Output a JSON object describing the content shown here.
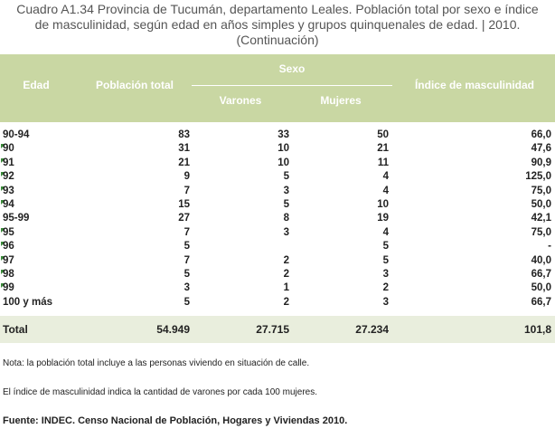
{
  "title_lines": [
    "Cuadro A1.34 Provincia de Tucumán, departamento Leales. Población total por sexo e índice",
    "de masculinidad, según edad en años simples y grupos quinquenales de edad. | 2010.",
    "(Continuación)"
  ],
  "header": {
    "edad": "Edad",
    "poblacion": "Población total",
    "sexo": "Sexo",
    "varones": "Varones",
    "mujeres": "Mujeres",
    "indice": "Índice de masculinidad"
  },
  "rows": [
    {
      "edad": "90-94",
      "pob": "83",
      "var": "33",
      "muj": "50",
      "ind": "66,0",
      "marker": false
    },
    {
      "edad": "90",
      "pob": "31",
      "var": "10",
      "muj": "21",
      "ind": "47,6",
      "marker": true
    },
    {
      "edad": "91",
      "pob": "21",
      "var": "10",
      "muj": "11",
      "ind": "90,9",
      "marker": true
    },
    {
      "edad": "92",
      "pob": "9",
      "var": "5",
      "muj": "4",
      "ind": "125,0",
      "marker": true
    },
    {
      "edad": "93",
      "pob": "7",
      "var": "3",
      "muj": "4",
      "ind": "75,0",
      "marker": true
    },
    {
      "edad": "94",
      "pob": "15",
      "var": "5",
      "muj": "10",
      "ind": "50,0",
      "marker": true
    },
    {
      "edad": "95-99",
      "pob": "27",
      "var": "8",
      "muj": "19",
      "ind": "42,1",
      "marker": false
    },
    {
      "edad": "95",
      "pob": "7",
      "var": "3",
      "muj": "4",
      "ind": "75,0",
      "marker": true
    },
    {
      "edad": "96",
      "pob": "5",
      "var": "",
      "muj": "5",
      "ind": "-",
      "marker": true
    },
    {
      "edad": "97",
      "pob": "7",
      "var": "2",
      "muj": "5",
      "ind": "40,0",
      "marker": true
    },
    {
      "edad": "98",
      "pob": "5",
      "var": "2",
      "muj": "3",
      "ind": "66,7",
      "marker": true
    },
    {
      "edad": "99",
      "pob": "3",
      "var": "1",
      "muj": "2",
      "ind": "50,0",
      "marker": true
    },
    {
      "edad": "100 y más",
      "pob": "5",
      "var": "2",
      "muj": "3",
      "ind": "66,7",
      "marker": false
    }
  ],
  "total": {
    "edad": "Total",
    "pob": "54.949",
    "var": "27.715",
    "muj": "27.234",
    "ind": "101,8"
  },
  "notes": [
    "Nota: la población total incluye a las personas viviendo en situación de calle.",
    "El índice de masculinidad indica la cantidad de varones por cada 100 mujeres."
  ],
  "source": "Fuente: INDEC. Censo Nacional de Población, Hogares y Viviendas 2010."
}
